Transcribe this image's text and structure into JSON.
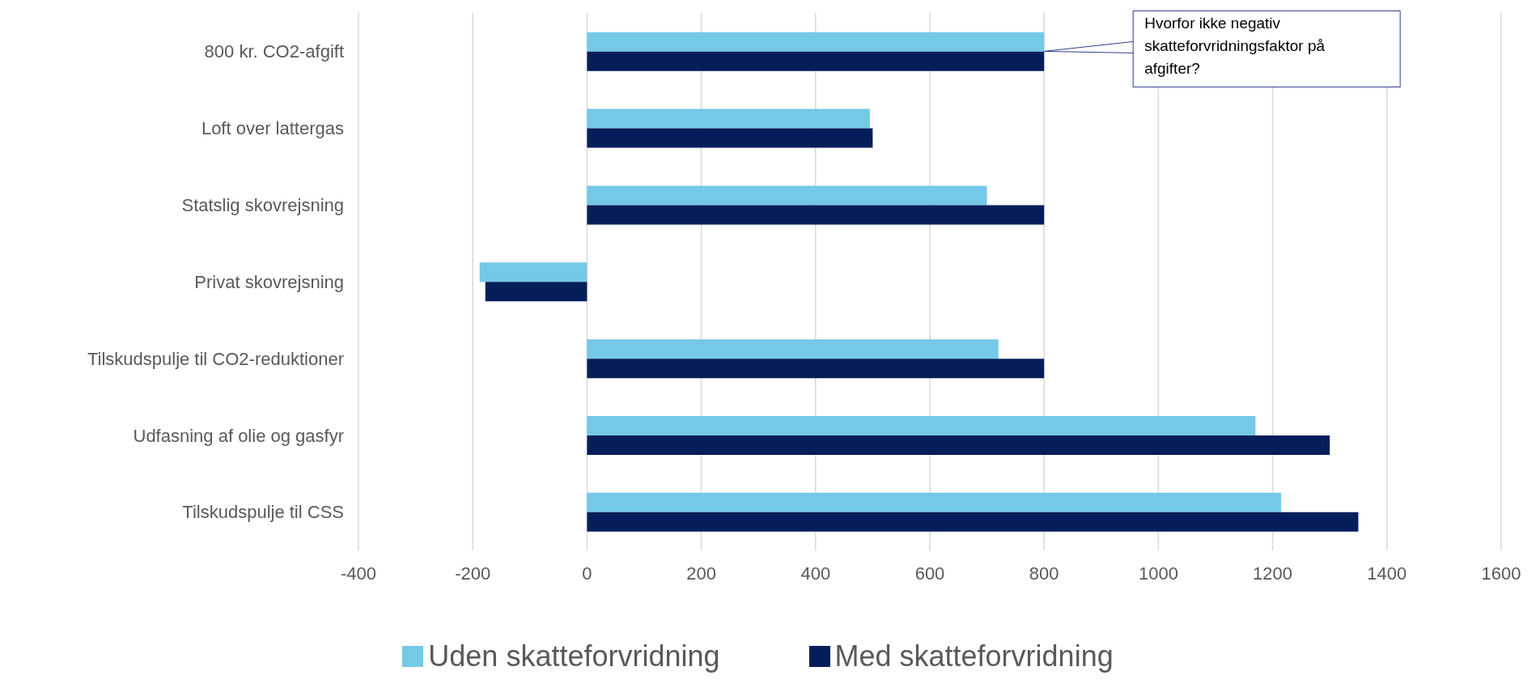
{
  "chart_data": {
    "type": "bar",
    "orientation": "horizontal",
    "categories": [
      "800 kr. CO2-afgift",
      "Loft over lattergas",
      "Statslig skovrejsning",
      "Privat skovrejsning",
      "Tilskudspulje til CO2-reduktioner",
      "Udfasning af olie og gasfyr",
      "Tilskudspulje til CSS"
    ],
    "series": [
      {
        "name": "Uden skatteforvridning",
        "color": "#74c9e6",
        "values": [
          800,
          495,
          700,
          -188,
          720,
          1170,
          1215
        ]
      },
      {
        "name": "Med skatteforvridning",
        "color": "#041e5a",
        "values": [
          800,
          500,
          800,
          -178,
          800,
          1300,
          1350
        ]
      }
    ],
    "xlim": [
      -400,
      1600
    ],
    "xticks": [
      -400,
      -200,
      0,
      200,
      400,
      600,
      800,
      1000,
      1200,
      1400,
      1600
    ],
    "grid": "x",
    "legend": "bottom",
    "annotations": [
      {
        "text": "Hvorfor ikke negativ skatteforvridningsfaktor på afgifter?",
        "x": 800,
        "y": "800 kr. CO2-afgift"
      }
    ]
  }
}
